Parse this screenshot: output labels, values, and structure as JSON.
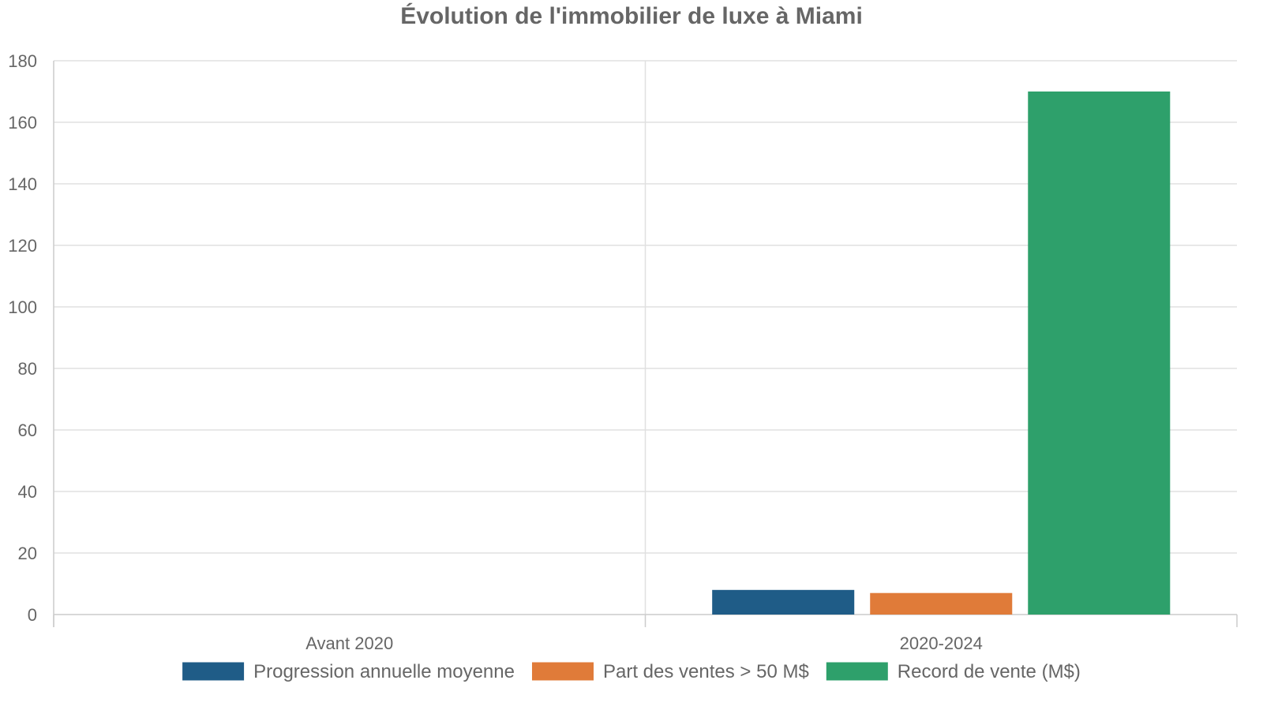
{
  "chart_data": {
    "type": "bar",
    "title": "Évolution de l'immobilier de luxe à Miami",
    "categories": [
      "Avant 2020",
      "2020-2024"
    ],
    "series": [
      {
        "name": "Progression annuelle moyenne",
        "values": [
          0,
          8
        ],
        "color": "#1f5c87"
      },
      {
        "name": "Part des ventes > 50 M$",
        "values": [
          0,
          7
        ],
        "color": "#e07b39"
      },
      {
        "name": "Record de vente (M$)",
        "values": [
          0,
          170
        ],
        "color": "#2ea06b"
      }
    ],
    "ylim": [
      0,
      180
    ],
    "yticks": [
      "0",
      "20",
      "40",
      "60",
      "80",
      "100",
      "120",
      "140",
      "160",
      "180"
    ],
    "grid": true,
    "legend_position": "bottom"
  }
}
